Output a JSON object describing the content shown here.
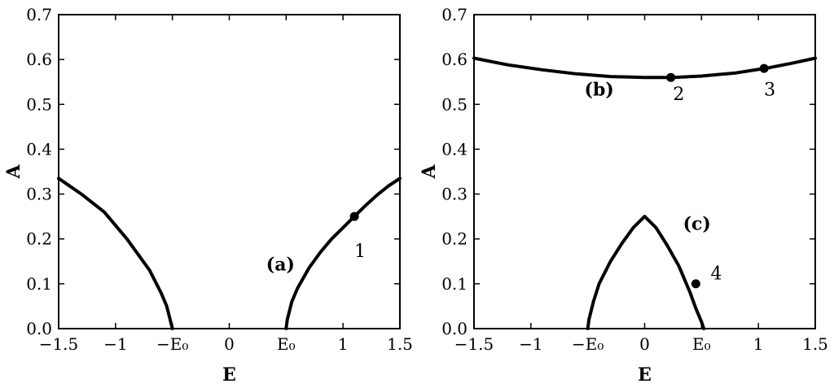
{
  "chart_data": [
    {
      "type": "line",
      "panel": "left",
      "xlabel": "E",
      "ylabel": "A",
      "xlim": [
        -1.5,
        1.5
      ],
      "ylim": [
        0,
        0.7
      ],
      "xticks": [
        {
          "v": -1.5,
          "label": "−1.5"
        },
        {
          "v": -1.0,
          "label": "−1"
        },
        {
          "v": -0.5,
          "label": "−E₀"
        },
        {
          "v": 0.0,
          "label": "0"
        },
        {
          "v": 0.5,
          "label": "E₀"
        },
        {
          "v": 1.0,
          "label": "1"
        },
        {
          "v": 1.5,
          "label": "1.5"
        }
      ],
      "yticks": [
        {
          "v": 0.0,
          "label": "0.0"
        },
        {
          "v": 0.1,
          "label": "0.1"
        },
        {
          "v": 0.2,
          "label": "0.2"
        },
        {
          "v": 0.3,
          "label": "0.3"
        },
        {
          "v": 0.4,
          "label": "0.4"
        },
        {
          "v": 0.5,
          "label": "0.5"
        },
        {
          "v": 0.6,
          "label": "0.6"
        },
        {
          "v": 0.7,
          "label": "0.7"
        }
      ],
      "series": [
        {
          "x": [
            -1.5,
            -1.3,
            -1.1,
            -0.9,
            -0.7,
            -0.6,
            -0.55,
            -0.51,
            -0.5
          ],
          "y": [
            0.335,
            0.3,
            0.26,
            0.2,
            0.13,
            0.08,
            0.05,
            0.01,
            0.0
          ]
        },
        {
          "x": [
            0.5,
            0.51,
            0.55,
            0.6,
            0.7,
            0.8,
            0.9,
            1.0,
            1.1,
            1.2,
            1.3,
            1.4,
            1.5
          ],
          "y": [
            0.0,
            0.02,
            0.06,
            0.09,
            0.135,
            0.17,
            0.2,
            0.225,
            0.25,
            0.275,
            0.298,
            0.318,
            0.335
          ]
        }
      ],
      "points": [
        {
          "x": 1.1,
          "y": 0.25
        }
      ],
      "annotations": [
        {
          "text": "(a)",
          "bold": true,
          "x": 0.45,
          "y": 0.13
        },
        {
          "text": "1",
          "bold": false,
          "x": 1.15,
          "y": 0.16
        }
      ]
    },
    {
      "type": "line",
      "panel": "right",
      "xlabel": "E",
      "ylabel": "A",
      "xlim": [
        -1.5,
        1.5
      ],
      "ylim": [
        0,
        0.7
      ],
      "xticks": [
        {
          "v": -1.5,
          "label": "−1.5"
        },
        {
          "v": -1.0,
          "label": "−1"
        },
        {
          "v": -0.5,
          "label": "−E₀"
        },
        {
          "v": 0.0,
          "label": "0"
        },
        {
          "v": 0.5,
          "label": "E₀"
        },
        {
          "v": 1.0,
          "label": "1"
        },
        {
          "v": 1.5,
          "label": "1.5"
        }
      ],
      "yticks": [
        {
          "v": 0.0,
          "label": "0.0"
        },
        {
          "v": 0.1,
          "label": "0.1"
        },
        {
          "v": 0.2,
          "label": "0.2"
        },
        {
          "v": 0.3,
          "label": "0.3"
        },
        {
          "v": 0.4,
          "label": "0.4"
        },
        {
          "v": 0.5,
          "label": "0.5"
        },
        {
          "v": 0.6,
          "label": "0.6"
        },
        {
          "v": 0.7,
          "label": "0.7"
        }
      ],
      "series": [
        {
          "x": [
            -1.5,
            -1.2,
            -0.9,
            -0.6,
            -0.3,
            0.0,
            0.25,
            0.5,
            0.8,
            1.1,
            1.3,
            1.5
          ],
          "y": [
            0.603,
            0.588,
            0.577,
            0.568,
            0.562,
            0.56,
            0.56,
            0.563,
            0.57,
            0.582,
            0.592,
            0.603
          ]
        },
        {
          "x": [
            -0.5,
            -0.49,
            -0.45,
            -0.4,
            -0.3,
            -0.2,
            -0.1,
            0.0,
            0.1,
            0.2,
            0.3,
            0.4,
            0.45,
            0.5,
            0.52
          ],
          "y": [
            0.0,
            0.02,
            0.06,
            0.1,
            0.15,
            0.19,
            0.225,
            0.25,
            0.225,
            0.185,
            0.14,
            0.08,
            0.045,
            0.015,
            0.0
          ]
        }
      ],
      "points": [
        {
          "x": 0.23,
          "y": 0.56
        },
        {
          "x": 1.05,
          "y": 0.58
        },
        {
          "x": 0.45,
          "y": 0.1
        }
      ],
      "annotations": [
        {
          "text": "(b)",
          "bold": true,
          "x": -0.4,
          "y": 0.52
        },
        {
          "text": "2",
          "bold": false,
          "x": 0.3,
          "y": 0.51
        },
        {
          "text": "3",
          "bold": false,
          "x": 1.1,
          "y": 0.52
        },
        {
          "text": "(c)",
          "bold": true,
          "x": 0.46,
          "y": 0.22
        },
        {
          "text": "4",
          "bold": false,
          "x": 0.63,
          "y": 0.11
        }
      ]
    }
  ]
}
